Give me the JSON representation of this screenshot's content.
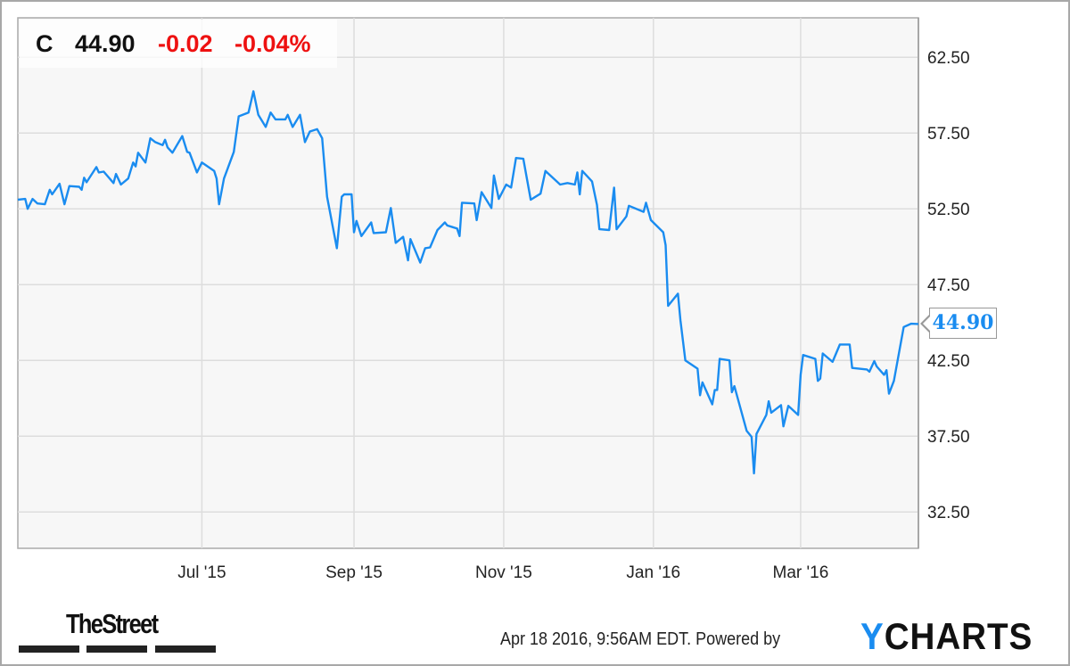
{
  "header": {
    "ticker": "C",
    "price": "44.90",
    "change": "-0.02",
    "change_pct": "-0.04%"
  },
  "last_price_tag": "44.90",
  "footer": {
    "logo": "TheStreet",
    "timestamp": "Apr 18 2016, 9:56AM EDT. Powered by",
    "brand_y": "Y",
    "brand_rest": "CHARTS"
  },
  "colors": {
    "line": "#1a8cf0",
    "negative": "#ee1111",
    "plot_bg": "#f7f7f7",
    "grid": "#dddddd"
  },
  "chart_data": {
    "type": "line",
    "title": "",
    "xlabel": "",
    "ylabel": "",
    "xlim": [
      "2015-04-17",
      "2016-04-18"
    ],
    "ylim": [
      30.1,
      65.1
    ],
    "grid": true,
    "y_axis_side": "right",
    "yticks": [
      32.5,
      37.5,
      42.5,
      47.5,
      52.5,
      57.5,
      62.5
    ],
    "ytick_labels": [
      "32.50",
      "37.50",
      "42.50",
      "47.50",
      "52.50",
      "57.50",
      "62.50"
    ],
    "xticks": [
      "2015-07-01",
      "2015-09-01",
      "2015-11-01",
      "2016-01-01",
      "2016-03-01"
    ],
    "xtick_labels": [
      "Jul '15",
      "Sep '15",
      "Nov '15",
      "Jan '16",
      "Mar '16"
    ],
    "series": [
      {
        "points": [
          [
            "2015-04-17",
            53.1
          ],
          [
            "2015-04-20",
            53.15
          ],
          [
            "2015-04-21",
            52.5
          ],
          [
            "2015-04-23",
            53.15
          ],
          [
            "2015-04-25",
            52.85
          ],
          [
            "2015-04-28",
            52.8
          ],
          [
            "2015-04-30",
            53.75
          ],
          [
            "2015-05-01",
            53.45
          ],
          [
            "2015-05-04",
            54.15
          ],
          [
            "2015-05-06",
            52.8
          ],
          [
            "2015-05-08",
            54.0
          ],
          [
            "2015-05-12",
            53.95
          ],
          [
            "2015-05-13",
            53.75
          ],
          [
            "2015-05-14",
            54.55
          ],
          [
            "2015-05-15",
            54.25
          ],
          [
            "2015-05-19",
            55.25
          ],
          [
            "2015-05-20",
            54.9
          ],
          [
            "2015-05-22",
            54.95
          ],
          [
            "2015-05-26",
            54.2
          ],
          [
            "2015-05-27",
            54.8
          ],
          [
            "2015-05-29",
            54.1
          ],
          [
            "2015-06-01",
            54.5
          ],
          [
            "2015-06-03",
            55.55
          ],
          [
            "2015-06-04",
            55.3
          ],
          [
            "2015-06-05",
            56.2
          ],
          [
            "2015-06-08",
            55.55
          ],
          [
            "2015-06-10",
            57.15
          ],
          [
            "2015-06-12",
            56.9
          ],
          [
            "2015-06-15",
            56.7
          ],
          [
            "2015-06-16",
            57.05
          ],
          [
            "2015-06-17",
            56.55
          ],
          [
            "2015-06-19",
            56.2
          ],
          [
            "2015-06-23",
            57.3
          ],
          [
            "2015-06-25",
            56.25
          ],
          [
            "2015-06-26",
            56.2
          ],
          [
            "2015-06-29",
            54.9
          ],
          [
            "2015-07-01",
            55.55
          ],
          [
            "2015-07-06",
            55.0
          ],
          [
            "2015-07-07",
            54.5
          ],
          [
            "2015-07-08",
            52.8
          ],
          [
            "2015-07-10",
            54.5
          ],
          [
            "2015-07-14",
            56.25
          ],
          [
            "2015-07-16",
            58.6
          ],
          [
            "2015-07-20",
            58.85
          ],
          [
            "2015-07-22",
            60.25
          ],
          [
            "2015-07-24",
            58.7
          ],
          [
            "2015-07-27",
            57.9
          ],
          [
            "2015-07-29",
            58.85
          ],
          [
            "2015-07-31",
            58.4
          ],
          [
            "2015-08-04",
            58.4
          ],
          [
            "2015-08-05",
            58.7
          ],
          [
            "2015-08-07",
            57.9
          ],
          [
            "2015-08-10",
            58.7
          ],
          [
            "2015-08-12",
            56.9
          ],
          [
            "2015-08-14",
            57.6
          ],
          [
            "2015-08-17",
            57.75
          ],
          [
            "2015-08-19",
            57.15
          ],
          [
            "2015-08-21",
            53.3
          ],
          [
            "2015-08-25",
            49.9
          ],
          [
            "2015-08-27",
            53.3
          ],
          [
            "2015-08-28",
            53.45
          ],
          [
            "2015-08-31",
            53.45
          ],
          [
            "2015-09-01",
            50.95
          ],
          [
            "2015-09-02",
            51.7
          ],
          [
            "2015-09-04",
            50.7
          ],
          [
            "2015-09-08",
            51.6
          ],
          [
            "2015-09-09",
            50.9
          ],
          [
            "2015-09-14",
            50.95
          ],
          [
            "2015-09-16",
            52.55
          ],
          [
            "2015-09-18",
            50.25
          ],
          [
            "2015-09-21",
            50.65
          ],
          [
            "2015-09-23",
            49.1
          ],
          [
            "2015-09-24",
            50.5
          ],
          [
            "2015-09-28",
            48.95
          ],
          [
            "2015-09-30",
            49.9
          ],
          [
            "2015-10-02",
            49.95
          ],
          [
            "2015-10-05",
            51.1
          ],
          [
            "2015-10-08",
            51.6
          ],
          [
            "2015-10-09",
            51.4
          ],
          [
            "2015-10-13",
            51.2
          ],
          [
            "2015-10-14",
            50.7
          ],
          [
            "2015-10-15",
            52.9
          ],
          [
            "2015-10-20",
            52.85
          ],
          [
            "2015-10-21",
            51.75
          ],
          [
            "2015-10-23",
            53.6
          ],
          [
            "2015-10-27",
            52.55
          ],
          [
            "2015-10-28",
            54.7
          ],
          [
            "2015-10-30",
            53.15
          ],
          [
            "2015-11-02",
            54.1
          ],
          [
            "2015-11-04",
            53.9
          ],
          [
            "2015-11-06",
            55.85
          ],
          [
            "2015-11-09",
            55.8
          ],
          [
            "2015-11-12",
            53.1
          ],
          [
            "2015-11-16",
            53.5
          ],
          [
            "2015-11-18",
            55.0
          ],
          [
            "2015-11-24",
            54.1
          ],
          [
            "2015-11-27",
            54.2
          ],
          [
            "2015-11-30",
            54.1
          ],
          [
            "2015-12-01",
            54.9
          ],
          [
            "2015-12-02",
            53.45
          ],
          [
            "2015-12-03",
            55.0
          ],
          [
            "2015-12-07",
            54.3
          ],
          [
            "2015-12-09",
            52.75
          ],
          [
            "2015-12-10",
            51.15
          ],
          [
            "2015-12-14",
            51.1
          ],
          [
            "2015-12-16",
            53.9
          ],
          [
            "2015-12-17",
            51.15
          ],
          [
            "2015-12-21",
            52.0
          ],
          [
            "2015-12-22",
            52.7
          ],
          [
            "2015-12-28",
            52.3
          ],
          [
            "2015-12-29",
            52.9
          ],
          [
            "2015-12-31",
            51.75
          ],
          [
            "2016-01-05",
            50.95
          ],
          [
            "2016-01-06",
            50.1
          ],
          [
            "2016-01-07",
            46.1
          ],
          [
            "2016-01-11",
            46.9
          ],
          [
            "2016-01-12",
            45.15
          ],
          [
            "2016-01-14",
            42.5
          ],
          [
            "2016-01-19",
            41.95
          ],
          [
            "2016-01-20",
            40.2
          ],
          [
            "2016-01-21",
            41.05
          ],
          [
            "2016-01-25",
            39.6
          ],
          [
            "2016-01-26",
            40.55
          ],
          [
            "2016-01-27",
            40.55
          ],
          [
            "2016-01-28",
            42.6
          ],
          [
            "2016-02-01",
            42.5
          ],
          [
            "2016-02-02",
            40.4
          ],
          [
            "2016-02-03",
            40.8
          ],
          [
            "2016-02-08",
            37.85
          ],
          [
            "2016-02-10",
            37.45
          ],
          [
            "2016-02-11",
            35.05
          ],
          [
            "2016-02-12",
            37.65
          ],
          [
            "2016-02-16",
            38.9
          ],
          [
            "2016-02-17",
            39.8
          ],
          [
            "2016-02-18",
            39.05
          ],
          [
            "2016-02-22",
            39.55
          ],
          [
            "2016-02-23",
            38.15
          ],
          [
            "2016-02-25",
            39.5
          ],
          [
            "2016-02-29",
            38.9
          ],
          [
            "2016-03-01",
            41.55
          ],
          [
            "2016-03-02",
            42.85
          ],
          [
            "2016-03-07",
            42.6
          ],
          [
            "2016-03-08",
            41.15
          ],
          [
            "2016-03-09",
            41.3
          ],
          [
            "2016-03-10",
            42.95
          ],
          [
            "2016-03-14",
            42.4
          ],
          [
            "2016-03-17",
            43.55
          ],
          [
            "2016-03-21",
            43.55
          ],
          [
            "2016-03-22",
            42.0
          ],
          [
            "2016-03-28",
            41.9
          ],
          [
            "2016-03-29",
            41.75
          ],
          [
            "2016-03-31",
            42.45
          ],
          [
            "2016-04-01",
            42.1
          ],
          [
            "2016-04-04",
            41.55
          ],
          [
            "2016-04-05",
            41.85
          ],
          [
            "2016-04-06",
            40.3
          ],
          [
            "2016-04-08",
            41.15
          ],
          [
            "2016-04-12",
            44.7
          ],
          [
            "2016-04-15",
            44.92
          ],
          [
            "2016-04-18",
            44.9
          ]
        ]
      }
    ]
  }
}
